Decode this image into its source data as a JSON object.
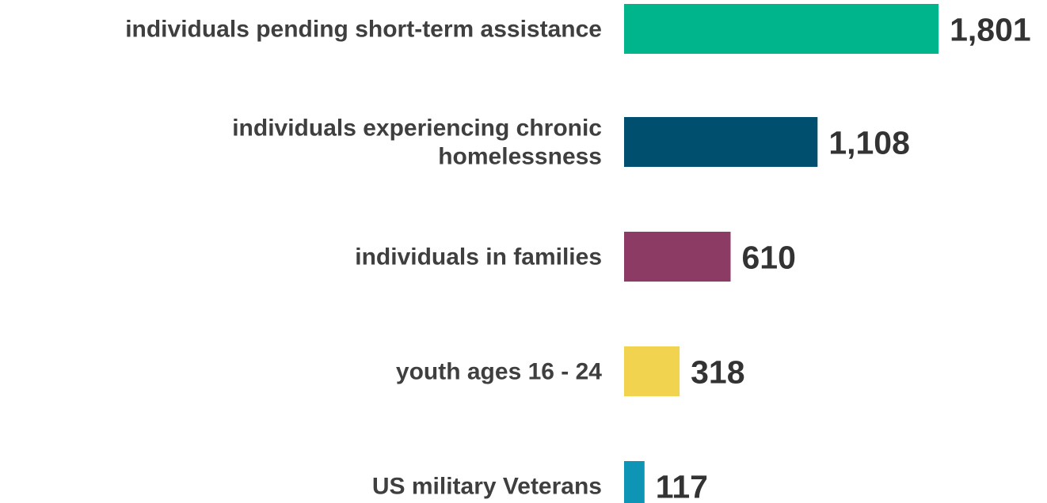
{
  "chart_data": {
    "type": "bar",
    "orientation": "horizontal",
    "categories": [
      [
        "individuals pending short-term assistance"
      ],
      [
        "individuals experiencing chronic",
        "homelessness"
      ],
      [
        "individuals in families"
      ],
      [
        "youth ages 16 - 24"
      ],
      [
        "US military Veterans"
      ]
    ],
    "values": [
      1801,
      1108,
      610,
      318,
      117
    ],
    "value_labels": [
      "1,801",
      "1,108",
      "610",
      "318",
      "117"
    ],
    "colors": [
      "#00b58b",
      "#004f6e",
      "#8c3b65",
      "#f2d34f",
      "#0e95b5"
    ],
    "title": "",
    "xlabel": "",
    "ylabel": "",
    "grid": false,
    "legend": "none"
  }
}
